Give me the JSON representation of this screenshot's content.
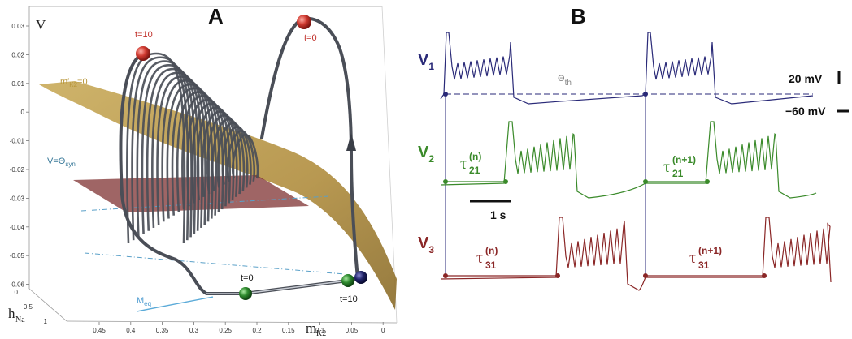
{
  "panel_a": {
    "label": "A",
    "v_axis": {
      "label": "V",
      "ticks": [
        "0.03",
        "0.02",
        "0.01",
        "0",
        "-0.01",
        "-0.02",
        "-0.03",
        "-0.04",
        "-0.05",
        "-0.06"
      ]
    },
    "h_axis": {
      "label": "h",
      "sub": "Na",
      "ticks": [
        "0",
        "0.5",
        "1"
      ]
    },
    "m_axis": {
      "label": "m",
      "sub": "K2",
      "ticks": [
        "0.45",
        "0.4",
        "0.35",
        "0.3",
        "0.25",
        "0.2",
        "0.15",
        "0.1",
        "0.05",
        "0"
      ]
    },
    "nullcline_label": {
      "main": "m′",
      "sub": "K2",
      "suffix": "=0"
    },
    "threshold_label": {
      "main": "V=Θ",
      "sub": "syn"
    },
    "meq_label": {
      "main": "M",
      "sub": "eq"
    },
    "markers": {
      "t10_top": "t=10",
      "t0_top": "t=0",
      "t0_bottom": "t=0",
      "t10_bottom": "t=10"
    },
    "colors": {
      "trajectory": "#4a4e57",
      "surface": "#b8963a",
      "plane": "#7a2a2a",
      "dash": "#5aa0c8",
      "red": "#c0302a",
      "green": "#2a7a2a",
      "navy": "#1e2060"
    }
  },
  "panel_b": {
    "label": "B",
    "traces": [
      {
        "name": "V",
        "sub": "1",
        "color": "#2a2a78"
      },
      {
        "name": "V",
        "sub": "2",
        "color": "#3a8a2a"
      },
      {
        "name": "V",
        "sub": "3",
        "color": "#8a2626"
      }
    ],
    "theta": {
      "main": "Θ",
      "sub": "th"
    },
    "tau21_n": {
      "sub": "21",
      "sup": "(n)"
    },
    "tau21_n1": {
      "sub": "21",
      "sup": "(n+1)"
    },
    "tau31_n": {
      "sub": "31",
      "sup": "(n)"
    },
    "tau31_n1": {
      "sub": "31",
      "sup": "(n+1)"
    },
    "scale_time": "1 s",
    "scale_mv": "20 mV",
    "rest_mv": "−60 mV"
  }
}
